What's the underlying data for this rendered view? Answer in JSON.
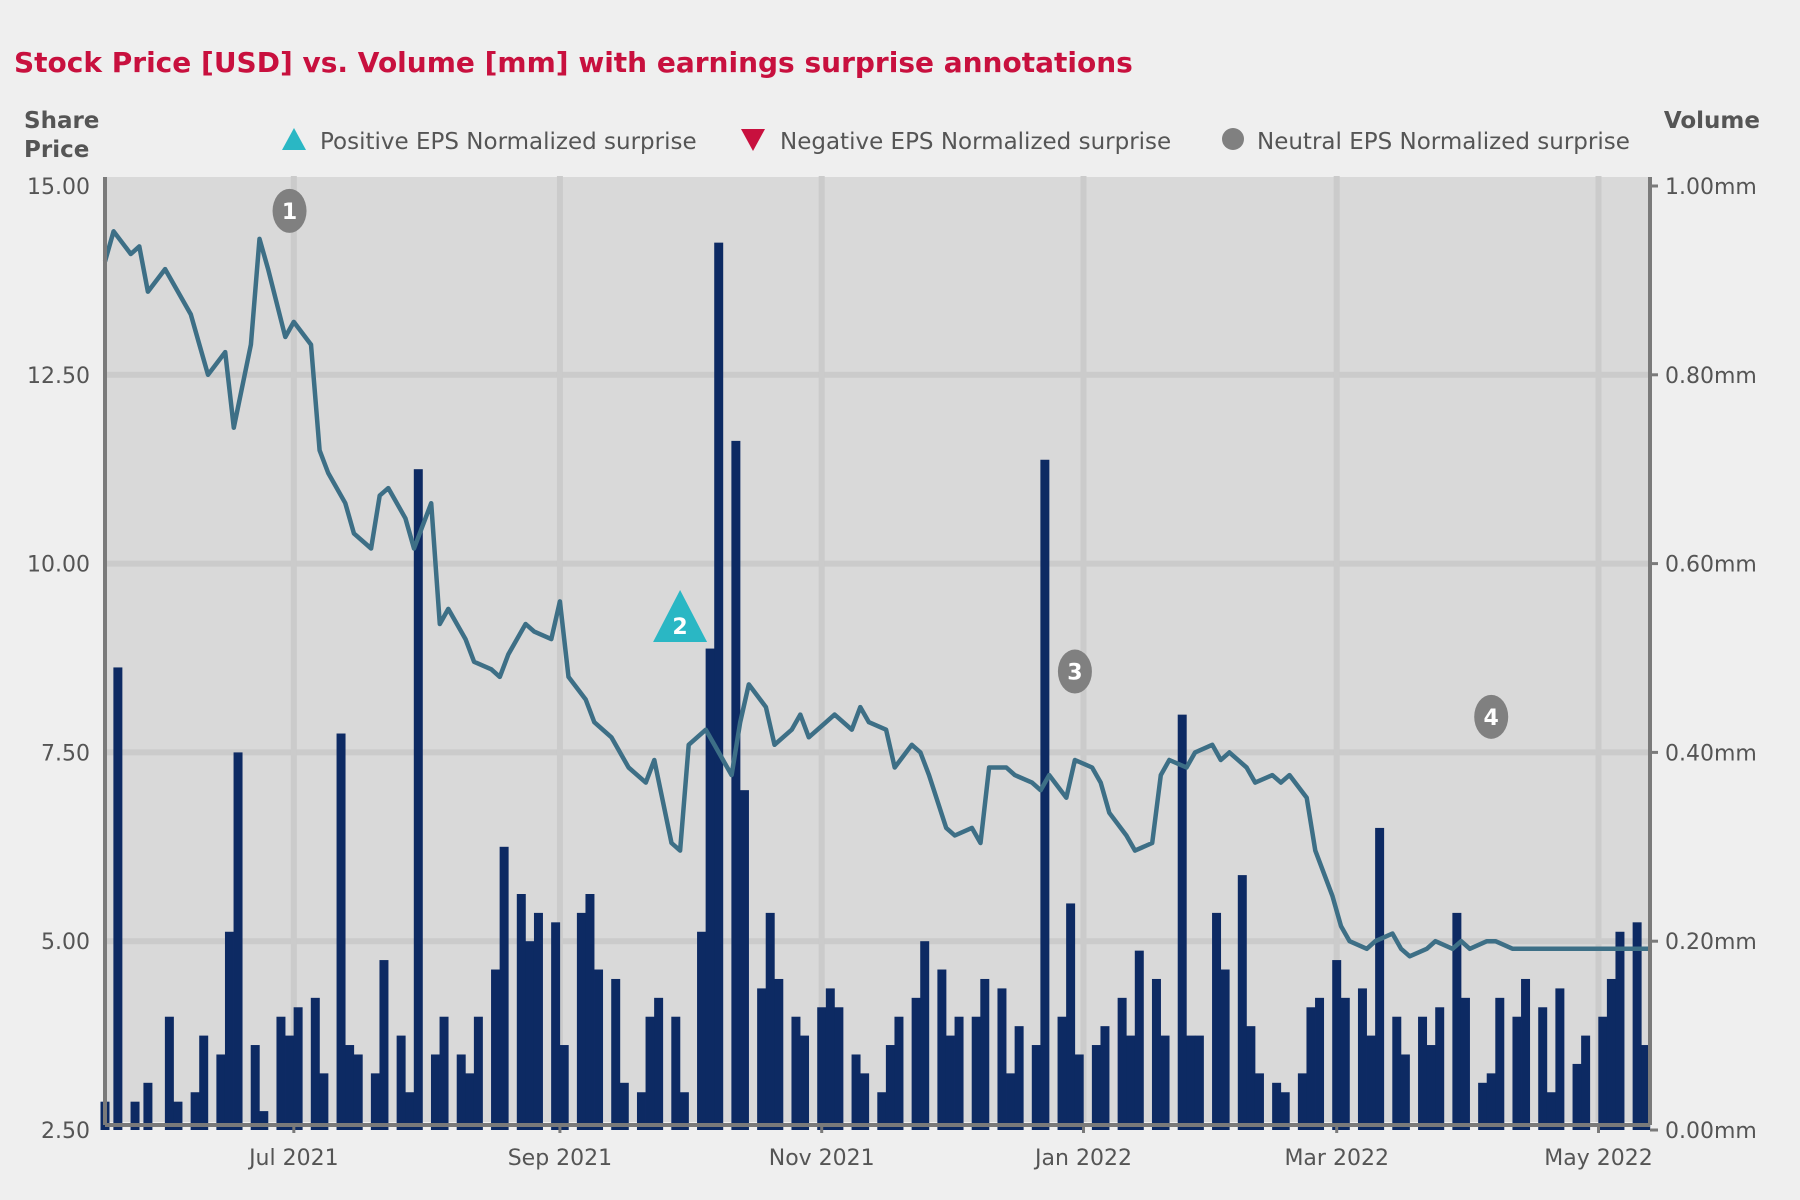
{
  "chart_data": {
    "type": "bar+line",
    "title": "Stock Price [USD] vs. Volume [mm] with earnings surprise annotations",
    "y_left_label_line1": "Share",
    "y_left_label_line2": "Price",
    "y_right_label": "Volume",
    "y_left_ticks": [
      "15.00",
      "12.50",
      "10.00",
      "7.50",
      "5.00",
      "2.50"
    ],
    "y_right_ticks": [
      "1.00mm",
      "0.80mm",
      "0.60mm",
      "0.40mm",
      "0.20mm",
      "0.00mm"
    ],
    "y_left_range": [
      2.5,
      15.0
    ],
    "y_right_range": [
      0.0,
      1.0
    ],
    "x_ticks": [
      "Jul 2021",
      "Sep 2021",
      "Nov 2021",
      "Jan 2022",
      "Mar 2022",
      "May 2022"
    ],
    "x_tick_dates": [
      "2021-07-01",
      "2021-09-01",
      "2021-11-01",
      "2022-01-01",
      "2022-03-01",
      "2022-05-01"
    ],
    "x_range": [
      "2021-05-18",
      "2022-05-13"
    ],
    "grid": true,
    "legend_position": "top",
    "legend": [
      {
        "label": "Positive EPS Normalized surprise",
        "marker": "triangle-up",
        "color": "#2ab7c4"
      },
      {
        "label": "Negative EPS Normalized surprise",
        "marker": "triangle-down",
        "color": "#c8103e"
      },
      {
        "label": "Neutral EPS Normalized surprise",
        "marker": "circle",
        "color": "#808080"
      }
    ],
    "colors": {
      "price_line": "#3d6f86",
      "volume_bars": "#0d2a63",
      "plot_bg": "#d9d9d9",
      "grid": "#cfcfcf",
      "title": "#c8103e"
    },
    "price_series": {
      "name": "Share Price",
      "x": [
        "2021-05-18",
        "2021-05-20",
        "2021-05-24",
        "2021-05-26",
        "2021-05-28",
        "2021-06-01",
        "2021-06-03",
        "2021-06-07",
        "2021-06-09",
        "2021-06-11",
        "2021-06-15",
        "2021-06-17",
        "2021-06-21",
        "2021-06-23",
        "2021-06-25",
        "2021-06-29",
        "2021-07-01",
        "2021-07-05",
        "2021-07-07",
        "2021-07-09",
        "2021-07-13",
        "2021-07-15",
        "2021-07-19",
        "2021-07-21",
        "2021-07-23",
        "2021-07-27",
        "2021-07-29",
        "2021-08-02",
        "2021-08-04",
        "2021-08-06",
        "2021-08-10",
        "2021-08-12",
        "2021-08-16",
        "2021-08-18",
        "2021-08-20",
        "2021-08-24",
        "2021-08-26",
        "2021-08-30",
        "2021-09-01",
        "2021-09-03",
        "2021-09-07",
        "2021-09-09",
        "2021-09-13",
        "2021-09-15",
        "2021-09-17",
        "2021-09-21",
        "2021-09-23",
        "2021-09-27",
        "2021-09-29",
        "2021-10-01",
        "2021-10-05",
        "2021-10-07",
        "2021-10-11",
        "2021-10-13",
        "2021-10-15",
        "2021-10-19",
        "2021-10-21",
        "2021-10-25",
        "2021-10-27",
        "2021-10-29",
        "2021-11-02",
        "2021-11-04",
        "2021-11-08",
        "2021-11-10",
        "2021-11-12",
        "2021-11-16",
        "2021-11-18",
        "2021-11-22",
        "2021-11-24",
        "2021-11-26",
        "2021-11-30",
        "2021-12-02",
        "2021-12-06",
        "2021-12-08",
        "2021-12-10",
        "2021-12-14",
        "2021-12-16",
        "2021-12-20",
        "2021-12-22",
        "2021-12-24",
        "2021-12-28",
        "2021-12-30",
        "2022-01-03",
        "2022-01-05",
        "2022-01-07",
        "2022-01-11",
        "2022-01-13",
        "2022-01-17",
        "2022-01-19",
        "2022-01-21",
        "2022-01-25",
        "2022-01-27",
        "2022-01-31",
        "2022-02-02",
        "2022-02-04",
        "2022-02-08",
        "2022-02-10",
        "2022-02-14",
        "2022-02-16",
        "2022-02-18",
        "2022-02-22",
        "2022-02-24",
        "2022-02-28",
        "2022-03-02",
        "2022-03-04",
        "2022-03-08",
        "2022-03-10",
        "2022-03-14",
        "2022-03-16",
        "2022-03-18",
        "2022-03-22",
        "2022-03-24",
        "2022-03-28",
        "2022-03-30",
        "2022-04-01",
        "2022-04-05",
        "2022-04-07",
        "2022-04-11",
        "2022-04-13",
        "2022-04-15",
        "2022-04-19",
        "2022-04-21",
        "2022-04-25",
        "2022-04-27",
        "2022-04-29",
        "2022-05-03",
        "2022-05-05",
        "2022-05-09",
        "2022-05-11",
        "2022-05-13"
      ],
      "values": [
        14.0,
        14.4,
        14.1,
        14.2,
        13.6,
        13.9,
        13.7,
        13.3,
        12.9,
        12.5,
        12.8,
        11.8,
        12.9,
        14.3,
        13.9,
        13.0,
        13.2,
        12.9,
        11.5,
        11.2,
        10.8,
        10.4,
        10.2,
        10.9,
        11.0,
        10.6,
        10.2,
        10.8,
        9.2,
        9.4,
        9.0,
        8.7,
        8.6,
        8.5,
        8.8,
        9.2,
        9.1,
        9.0,
        9.5,
        8.5,
        8.2,
        7.9,
        7.7,
        7.5,
        7.3,
        7.1,
        7.4,
        6.3,
        6.2,
        7.6,
        7.8,
        7.6,
        7.2,
        7.9,
        8.4,
        8.1,
        7.6,
        7.8,
        8.0,
        7.7,
        7.9,
        8.0,
        7.8,
        8.1,
        7.9,
        7.8,
        7.3,
        7.6,
        7.5,
        7.2,
        6.5,
        6.4,
        6.5,
        6.3,
        7.3,
        7.3,
        7.2,
        7.1,
        7.0,
        7.2,
        6.9,
        7.4,
        7.3,
        7.1,
        6.7,
        6.4,
        6.2,
        6.3,
        7.2,
        7.4,
        7.3,
        7.5,
        7.6,
        7.4,
        7.5,
        7.3,
        7.1,
        7.2,
        7.1,
        7.2,
        6.9,
        6.2,
        5.6,
        5.2,
        5.0,
        4.9,
        5.0,
        5.1,
        4.9,
        4.8,
        4.9,
        5.0,
        4.9,
        5.0,
        4.9,
        5.0,
        5.0,
        4.9,
        4.9,
        4.9,
        4.9,
        4.9,
        4.9,
        4.9,
        4.9,
        4.9,
        4.9,
        4.9,
        4.9,
        4.9
      ]
    },
    "volume_series": {
      "name": "Volume",
      "x": [
        "2021-05-18",
        "2021-05-21",
        "2021-05-25",
        "2021-05-28",
        "2021-06-02",
        "2021-06-04",
        "2021-06-08",
        "2021-06-10",
        "2021-06-14",
        "2021-06-16",
        "2021-06-18",
        "2021-06-22",
        "2021-06-24",
        "2021-06-28",
        "2021-06-30",
        "2021-07-02",
        "2021-07-06",
        "2021-07-08",
        "2021-07-12",
        "2021-07-14",
        "2021-07-16",
        "2021-07-20",
        "2021-07-22",
        "2021-07-26",
        "2021-07-28",
        "2021-07-30",
        "2021-08-03",
        "2021-08-05",
        "2021-08-09",
        "2021-08-11",
        "2021-08-13",
        "2021-08-17",
        "2021-08-19",
        "2021-08-23",
        "2021-08-25",
        "2021-08-27",
        "2021-08-31",
        "2021-09-02",
        "2021-09-06",
        "2021-09-08",
        "2021-09-10",
        "2021-09-14",
        "2021-09-16",
        "2021-09-20",
        "2021-09-22",
        "2021-09-24",
        "2021-09-28",
        "2021-09-30",
        "2021-10-04",
        "2021-10-06",
        "2021-10-08",
        "2021-10-12",
        "2021-10-14",
        "2021-10-18",
        "2021-10-20",
        "2021-10-22",
        "2021-10-26",
        "2021-10-28",
        "2021-11-01",
        "2021-11-03",
        "2021-11-05",
        "2021-11-09",
        "2021-11-11",
        "2021-11-15",
        "2021-11-17",
        "2021-11-19",
        "2021-11-23",
        "2021-11-25",
        "2021-11-29",
        "2021-12-01",
        "2021-12-03",
        "2021-12-07",
        "2021-12-09",
        "2021-12-13",
        "2021-12-15",
        "2021-12-17",
        "2021-12-21",
        "2021-12-23",
        "2021-12-27",
        "2021-12-29",
        "2021-12-31",
        "2022-01-04",
        "2022-01-06",
        "2022-01-10",
        "2022-01-12",
        "2022-01-14",
        "2022-01-18",
        "2022-01-20",
        "2022-01-24",
        "2022-01-26",
        "2022-01-28",
        "2022-02-01",
        "2022-02-03",
        "2022-02-07",
        "2022-02-09",
        "2022-02-11",
        "2022-02-15",
        "2022-02-17",
        "2022-02-21",
        "2022-02-23",
        "2022-02-25",
        "2022-03-01",
        "2022-03-03",
        "2022-03-07",
        "2022-03-09",
        "2022-03-11",
        "2022-03-15",
        "2022-03-17",
        "2022-03-21",
        "2022-03-23",
        "2022-03-25",
        "2022-03-29",
        "2022-03-31",
        "2022-04-04",
        "2022-04-06",
        "2022-04-08",
        "2022-04-12",
        "2022-04-14",
        "2022-04-18",
        "2022-04-20",
        "2022-04-22",
        "2022-04-26",
        "2022-04-28",
        "2022-05-02",
        "2022-05-04",
        "2022-05-06",
        "2022-05-10",
        "2022-05-12"
      ],
      "values": [
        0.03,
        0.49,
        0.03,
        0.05,
        0.12,
        0.03,
        0.04,
        0.1,
        0.08,
        0.21,
        0.4,
        0.09,
        0.02,
        0.12,
        0.1,
        0.13,
        0.14,
        0.06,
        0.42,
        0.09,
        0.08,
        0.06,
        0.18,
        0.1,
        0.04,
        0.7,
        0.08,
        0.12,
        0.08,
        0.06,
        0.12,
        0.17,
        0.3,
        0.25,
        0.2,
        0.23,
        0.22,
        0.09,
        0.23,
        0.25,
        0.17,
        0.16,
        0.05,
        0.04,
        0.12,
        0.14,
        0.12,
        0.04,
        0.21,
        0.51,
        0.94,
        0.73,
        0.36,
        0.15,
        0.23,
        0.16,
        0.12,
        0.1,
        0.13,
        0.15,
        0.13,
        0.08,
        0.06,
        0.04,
        0.09,
        0.12,
        0.14,
        0.2,
        0.17,
        0.1,
        0.12,
        0.12,
        0.16,
        0.15,
        0.06,
        0.11,
        0.09,
        0.71,
        0.12,
        0.24,
        0.08,
        0.09,
        0.11,
        0.14,
        0.1,
        0.19,
        0.16,
        0.1,
        0.44,
        0.1,
        0.1,
        0.23,
        0.17,
        0.27,
        0.11,
        0.06,
        0.05,
        0.04,
        0.06,
        0.13,
        0.14,
        0.18,
        0.14,
        0.15,
        0.1,
        0.32,
        0.12,
        0.08,
        0.12,
        0.09,
        0.13,
        0.23,
        0.14,
        0.05,
        0.06,
        0.14,
        0.12,
        0.16,
        0.13,
        0.04,
        0.15,
        0.07,
        0.1,
        0.12,
        0.16,
        0.21,
        0.22,
        0.09
      ]
    },
    "annotations": [
      {
        "label": "1",
        "type": "neutral",
        "date": "2021-06-30",
        "price": 14.3
      },
      {
        "label": "2",
        "type": "positive",
        "date": "2021-09-29",
        "price": 9.2
      },
      {
        "label": "3",
        "type": "neutral",
        "date": "2021-12-30",
        "price": 8.2
      },
      {
        "label": "4",
        "type": "neutral",
        "date": "2022-04-06",
        "price": 7.6
      }
    ]
  }
}
